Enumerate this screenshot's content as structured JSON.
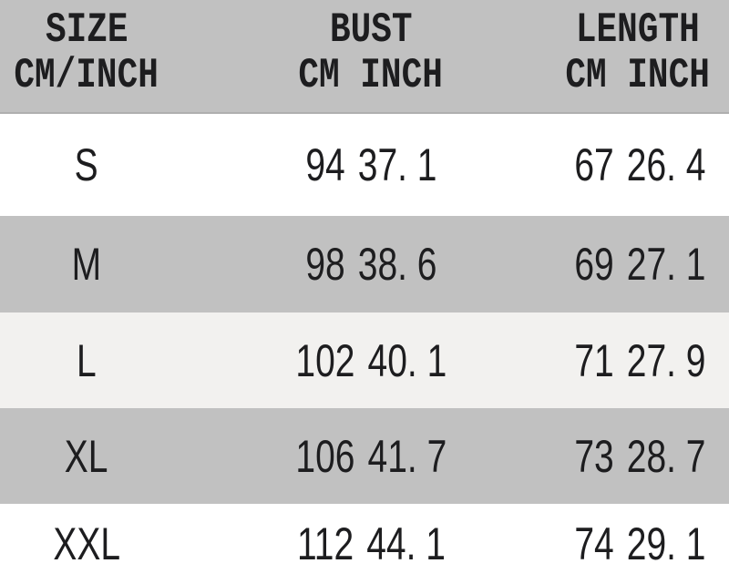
{
  "colors": {
    "header_bg": "#c1c1c1",
    "gray_row_bg": "#c1c1c1",
    "light_row_bg": "#f2f1ef",
    "white_row_bg": "#ffffff",
    "text": "#1d1d1f"
  },
  "table": {
    "header": {
      "size_title": "SIZE",
      "size_subtitle": "CM/INCH",
      "bust_title": "BUST",
      "bust_subtitle": "CM INCH",
      "length_title": "LENGTH",
      "length_subtitle": "CM INCH"
    },
    "rows": [
      {
        "size": "S",
        "bust_cm": "94",
        "bust_inch": "37. 1",
        "length_cm": "67",
        "length_inch": "26. 4"
      },
      {
        "size": "M",
        "bust_cm": "98",
        "bust_inch": "38. 6",
        "length_cm": "69",
        "length_inch": "27. 1"
      },
      {
        "size": "L",
        "bust_cm": "102",
        "bust_inch": "40. 1",
        "length_cm": "71",
        "length_inch": "27. 9"
      },
      {
        "size": "XL",
        "bust_cm": "106",
        "bust_inch": "41. 7",
        "length_cm": "73",
        "length_inch": "28. 7"
      },
      {
        "size": "XXL",
        "bust_cm": "112",
        "bust_inch": "44. 1",
        "length_cm": "74",
        "length_inch": "29. 1"
      }
    ]
  },
  "chart_data": {
    "type": "table",
    "columns": [
      "SIZE CM/INCH",
      "BUST CM",
      "BUST INCH",
      "LENGTH CM",
      "LENGTH INCH"
    ],
    "rows": [
      [
        "S",
        94,
        37.1,
        67,
        26.4
      ],
      [
        "M",
        98,
        38.6,
        69,
        27.1
      ],
      [
        "L",
        102,
        40.1,
        71,
        27.9
      ],
      [
        "XL",
        106,
        41.7,
        73,
        28.7
      ],
      [
        "XXL",
        112,
        44.1,
        74,
        29.1
      ]
    ]
  }
}
